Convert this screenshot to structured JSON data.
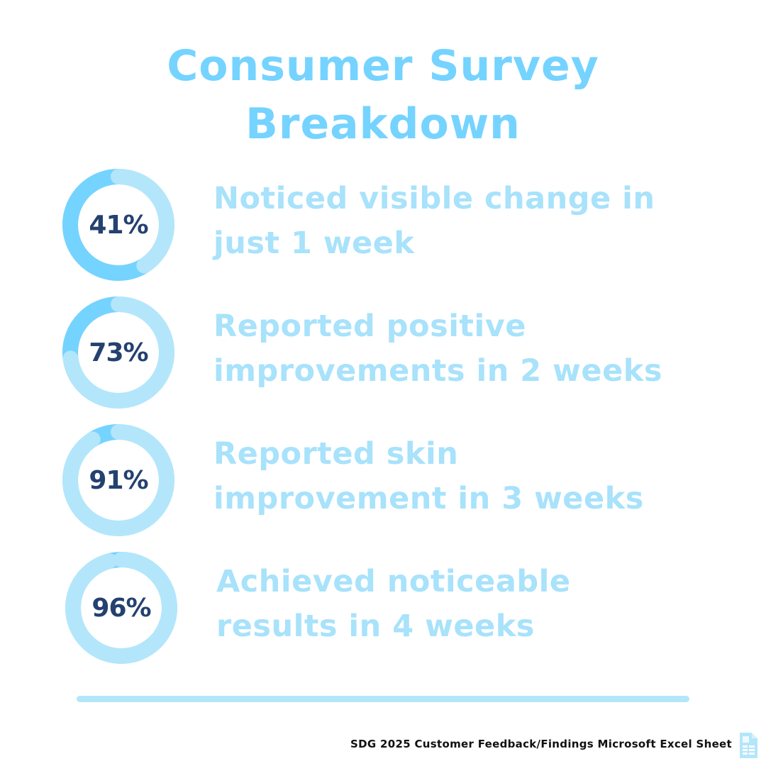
{
  "title": {
    "line1": "Consumer Survey",
    "line2": "Breakdown"
  },
  "colors": {
    "accent": "#75d3ff",
    "track": "#b3e6fb",
    "text_light": "#a8e2fb",
    "number": "#24416f"
  },
  "chart_data": {
    "type": "donut",
    "unit": "%",
    "items": [
      {
        "value": 41,
        "label": "41%",
        "description": [
          "Noticed visible change in",
          "just 1 week"
        ]
      },
      {
        "value": 73,
        "label": "73%",
        "description": [
          "Reported positive",
          "improvements in 2 weeks"
        ]
      },
      {
        "value": 91,
        "label": "91%",
        "description": [
          "Reported skin",
          "improvement in 3 weeks"
        ]
      },
      {
        "value": 96,
        "label": "96%",
        "description": [
          "Achieved noticeable",
          "results in 4 weeks"
        ]
      }
    ]
  },
  "footer": {
    "source": "SDG 2025 Customer Feedback/Findings Microsoft Excel Sheet",
    "icon": "document-icon"
  }
}
